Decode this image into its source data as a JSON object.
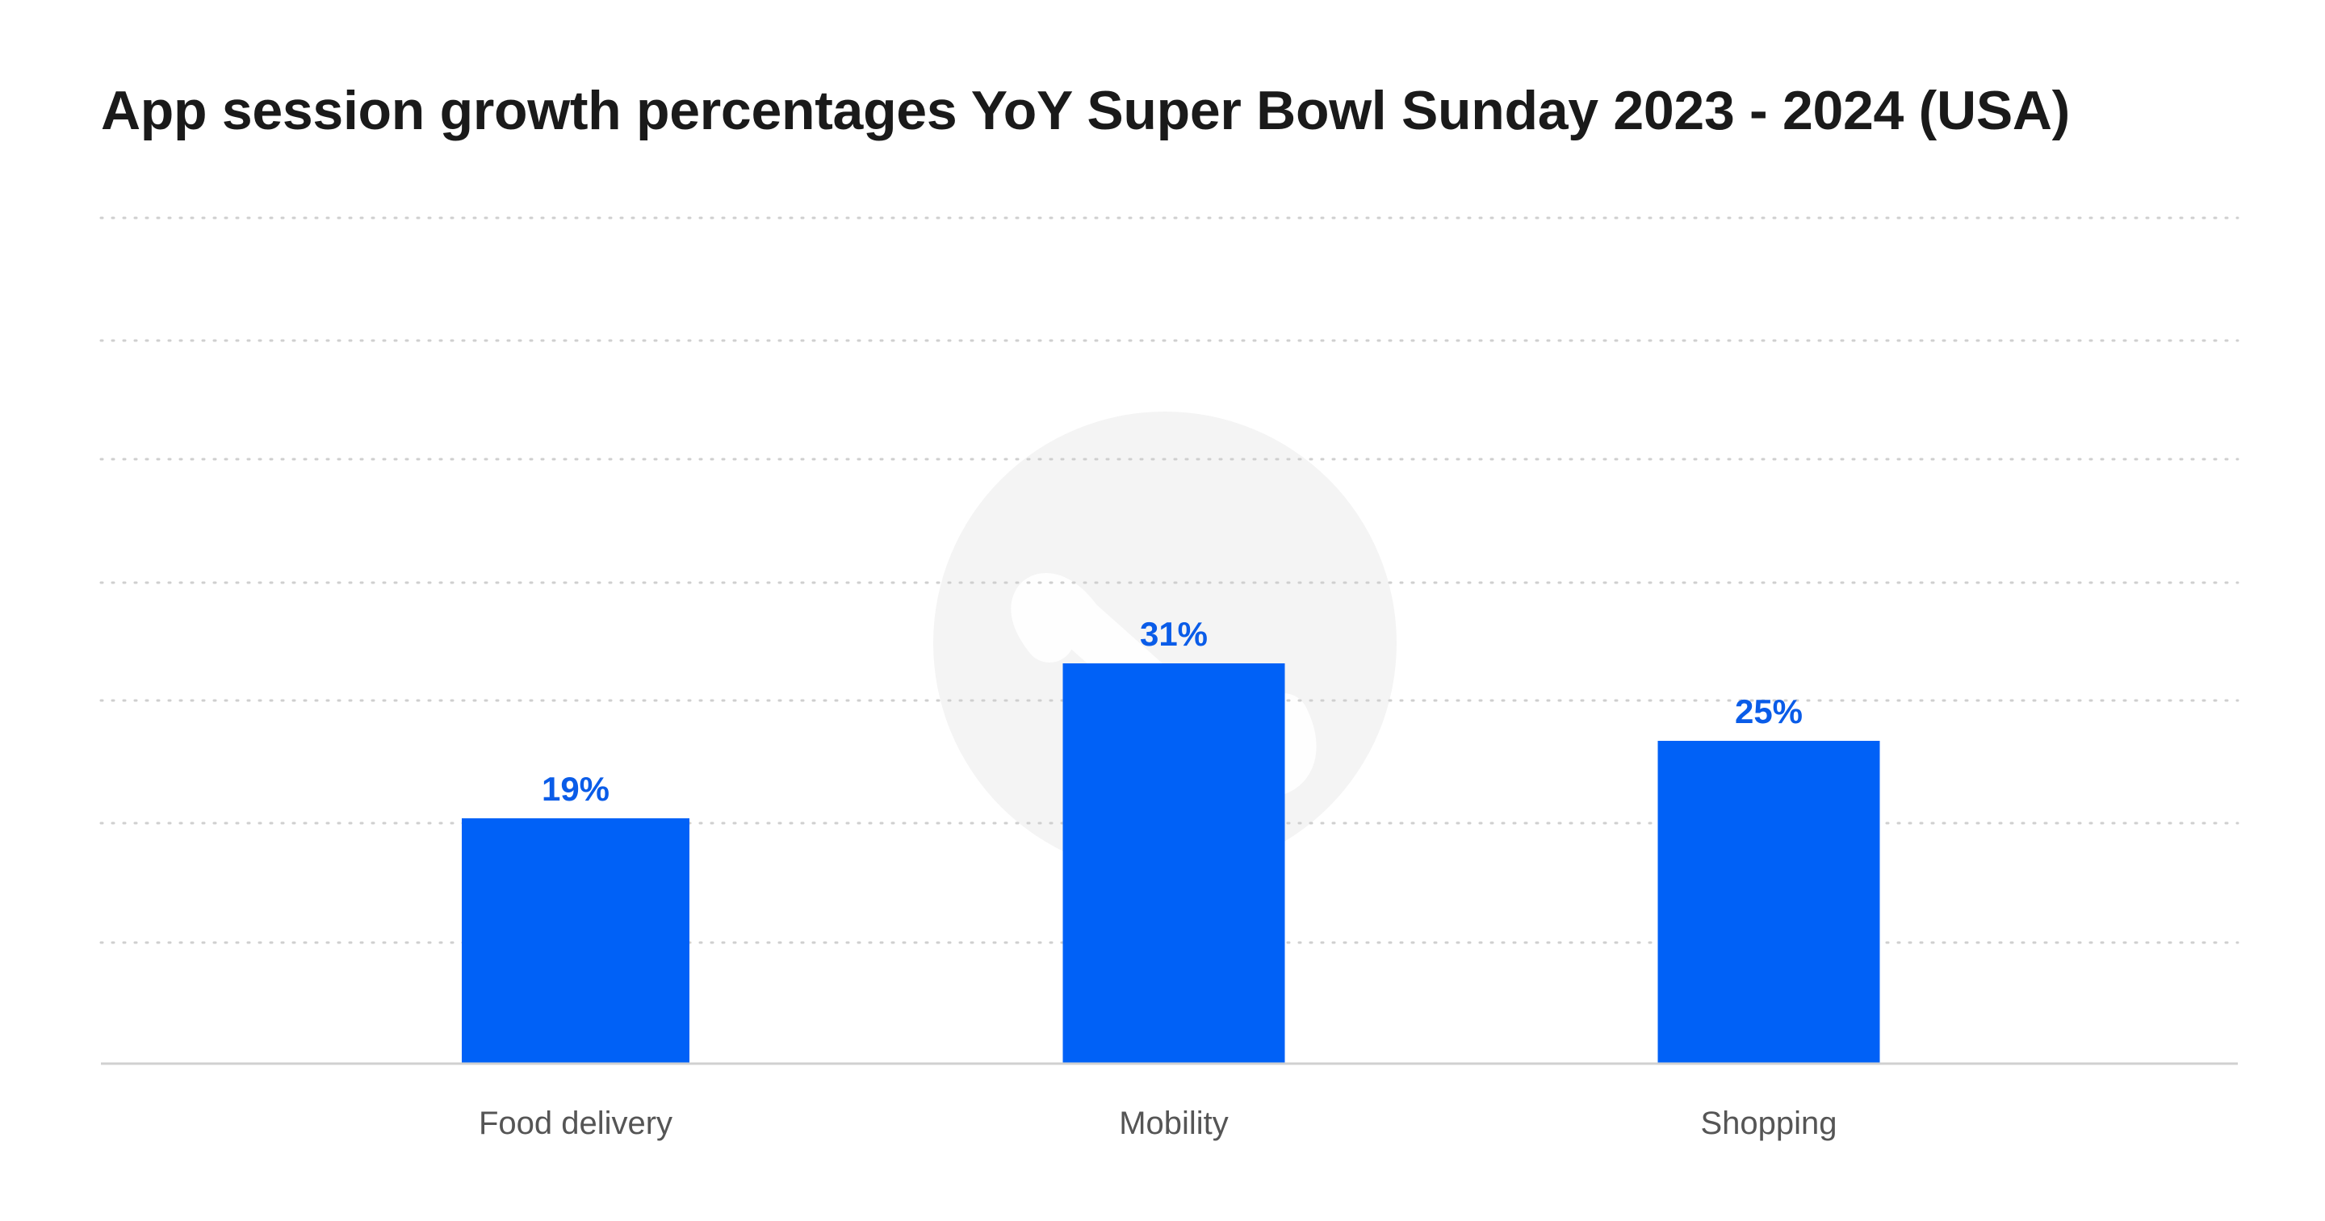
{
  "chart_data": {
    "type": "bar",
    "title": "App session growth percentages YoY Super Bowl Sunday 2023 - 2024 (USA)",
    "categories": [
      "Food delivery",
      "Mobility",
      "Shopping"
    ],
    "values": [
      19,
      31,
      25
    ],
    "value_labels": [
      "19%",
      "31%",
      "25%"
    ],
    "xlabel": "",
    "ylabel": "",
    "ylim": [
      0,
      35
    ],
    "grid": true,
    "legend": "none"
  },
  "colors": {
    "bar": "#0061f7",
    "value_label": "#0a5ce8",
    "title": "#1a1a1a",
    "watermark": "#f4f4f4"
  },
  "watermark": {
    "icon": "brand-logo-watermark-icon"
  }
}
